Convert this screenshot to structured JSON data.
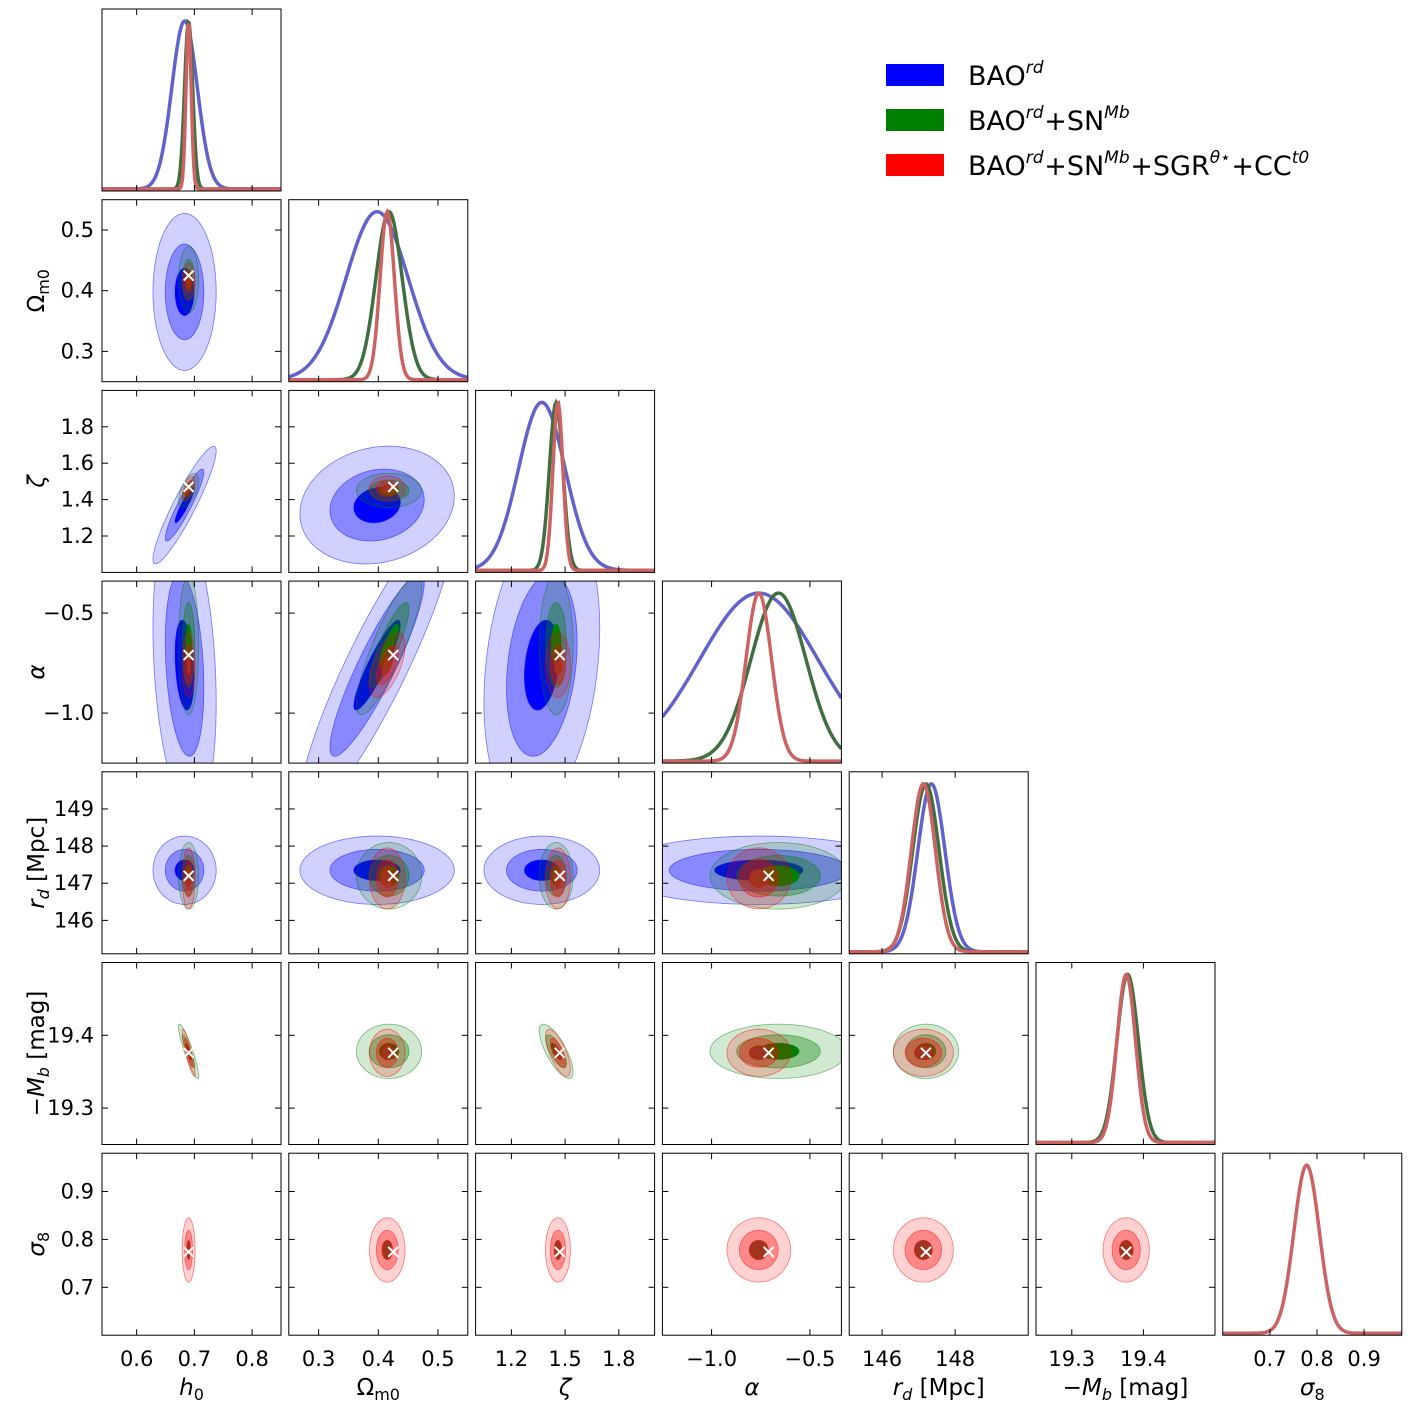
{
  "chart_data": {
    "type": "corner",
    "parameters": [
      {
        "key": "h0",
        "label": "h0",
        "range": [
          0.54,
          0.85
        ],
        "ticks": [
          0.6,
          0.7,
          0.8
        ],
        "tick_labels": [
          "0.6",
          "0.7",
          "0.8"
        ]
      },
      {
        "key": "om",
        "label": "Ωm0",
        "range": [
          0.25,
          0.55
        ],
        "ticks": [
          0.3,
          0.4,
          0.5
        ],
        "tick_labels": [
          "0.3",
          "0.4",
          "0.5"
        ]
      },
      {
        "key": "zeta",
        "label": "ζ",
        "range": [
          1.0,
          2.0
        ],
        "ticks": [
          1.2,
          1.4,
          1.6,
          1.8
        ],
        "tick_labels": [
          "1.2",
          "1.4",
          "1.6",
          "1.8"
        ],
        "x_ticks": [
          1.2,
          1.5,
          1.8
        ],
        "x_tick_labels": [
          "1.2",
          "1.5",
          "1.8"
        ]
      },
      {
        "key": "alpha",
        "label": "α",
        "range": [
          -1.25,
          -0.34
        ],
        "ticks": [
          -1.0,
          -0.5
        ],
        "tick_labels": [
          "−1.0",
          "−0.5"
        ]
      },
      {
        "key": "rd",
        "label": "rd [Mpc]",
        "range": [
          145.1,
          150.0
        ],
        "ticks": [
          146,
          147,
          148,
          149
        ],
        "tick_labels": [
          "146",
          "147",
          "148",
          "149"
        ],
        "x_ticks": [
          146,
          148
        ],
        "x_tick_labels": [
          "146",
          "148"
        ]
      },
      {
        "key": "mb",
        "label": "−Mb [mag]",
        "range": [
          19.25,
          19.5
        ],
        "ticks": [
          19.3,
          19.4
        ],
        "tick_labels": [
          "19.3",
          "19.4"
        ]
      },
      {
        "key": "s8",
        "label": "σ8",
        "range": [
          0.6,
          0.98
        ],
        "ticks": [
          0.7,
          0.8,
          0.9
        ],
        "tick_labels": [
          "0.7",
          "0.8",
          "0.9"
        ]
      }
    ],
    "x_axis_titles": [
      "h0",
      "Ωm0",
      "ζ",
      "α",
      "rd [Mpc]",
      "−Mb [mag]",
      "σ8"
    ],
    "y_axis_titles": [
      "",
      "Ωm0",
      "ζ",
      "α",
      "rd [Mpc]",
      "−Mb [mag]",
      "σ8"
    ],
    "legend_placement": "top-right",
    "series": [
      {
        "name": "BAO^rd",
        "legend_base": "BAO",
        "legend_parts": [
          {
            "t": "BAO",
            "sup": "rd"
          }
        ],
        "color": "#0000ff",
        "line_color": "#6262cc",
        "params": [
          "h0",
          "om",
          "zeta",
          "alpha",
          "rd"
        ],
        "mean": {
          "h0": 0.683,
          "om": 0.398,
          "zeta": 1.37,
          "alpha": -0.76,
          "rd": 147.35
        },
        "sigma": {
          "h0": 0.022,
          "om": 0.052,
          "zeta": 0.13,
          "alpha": 0.3,
          "rd": 0.37
        },
        "rho": {
          "h0|zeta": 0.92,
          "om|alpha": 0.9,
          "zeta|alpha": 0.25,
          "h0|alpha": -0.25,
          "om|zeta": 0.15
        }
      },
      {
        "name": "BAO^rd+SN^Mb",
        "legend_parts": [
          {
            "t": "BAO",
            "sup": "rd"
          },
          {
            "t": "+SN",
            "sup": "Mb"
          }
        ],
        "color": "#008000",
        "line_color": "#3f6f3f",
        "params": [
          "h0",
          "om",
          "zeta",
          "alpha",
          "rd",
          "mb"
        ],
        "mean": {
          "h0": 0.69,
          "om": 0.418,
          "zeta": 1.45,
          "alpha": -0.66,
          "rd": 147.2,
          "mb": 19.378
        },
        "sigma": {
          "h0": 0.007,
          "om": 0.022,
          "zeta": 0.038,
          "alpha": 0.14,
          "rd": 0.36,
          "mb": 0.015
        },
        "rho": {
          "om|alpha": 0.85,
          "h0|mb": -0.9,
          "zeta|mb": -0.75,
          "h0|zeta": 0.6
        }
      },
      {
        "name": "BAO^rd+SN^Mb+SGR^θ*+CC^t0",
        "legend_parts": [
          {
            "t": "BAO",
            "sup": "rd"
          },
          {
            "t": "+SN",
            "sup": "Mb"
          },
          {
            "t": "+SGR",
            "sup": "θ⋆"
          },
          {
            "t": "+CC",
            "sup": "t0"
          }
        ],
        "color": "#ff0000",
        "line_color": "#cc6262",
        "params": [
          "h0",
          "om",
          "zeta",
          "alpha",
          "rd",
          "mb",
          "s8"
        ],
        "mean": {
          "h0": 0.69,
          "om": 0.415,
          "zeta": 1.46,
          "alpha": -0.76,
          "rd": 147.13,
          "mb": 19.376,
          "s8": 0.778
        },
        "sigma": {
          "h0": 0.0045,
          "om": 0.012,
          "zeta": 0.028,
          "alpha": 0.065,
          "rd": 0.33,
          "mb": 0.013,
          "s8": 0.027
        },
        "rho": {
          "om|alpha": 0.6,
          "h0|mb": -0.88,
          "zeta|mb": -0.7,
          "h0|zeta": 0.6
        }
      }
    ],
    "best_fit_marker": "×",
    "best_fit": {
      "h0": 0.69,
      "om": 0.425,
      "zeta": 1.47,
      "alpha": -0.71,
      "rd": 147.2,
      "mb": 19.376,
      "s8": 0.774
    }
  }
}
